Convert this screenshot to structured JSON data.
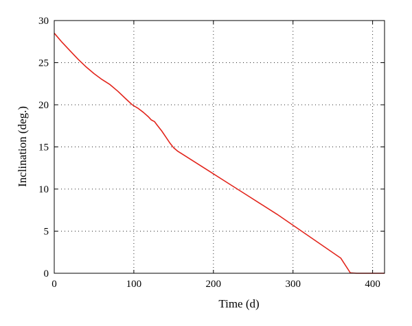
{
  "chart_data": {
    "type": "line",
    "xlabel": "Time (d)",
    "ylabel": "Inclination (deg.)",
    "xlim": [
      0,
      415
    ],
    "ylim": [
      0,
      30
    ],
    "xticks": [
      0,
      100,
      200,
      300,
      400
    ],
    "yticks": [
      0,
      5,
      10,
      15,
      20,
      25,
      30
    ],
    "grid": true,
    "series": [
      {
        "color": "#e2231a",
        "x": [
          0,
          10,
          20,
          30,
          40,
          50,
          60,
          70,
          80,
          90,
          98,
          105,
          112,
          118,
          122,
          126,
          130,
          135,
          140,
          145,
          150,
          155,
          160,
          180,
          200,
          220,
          240,
          260,
          280,
          300,
          320,
          340,
          360,
          372,
          380,
          400,
          415
        ],
        "y": [
          28.5,
          27.4,
          26.4,
          25.4,
          24.5,
          23.7,
          23.0,
          22.4,
          21.6,
          20.7,
          20.0,
          19.6,
          19.1,
          18.6,
          18.2,
          18.0,
          17.5,
          16.9,
          16.2,
          15.5,
          14.9,
          14.5,
          14.2,
          13.0,
          11.8,
          10.6,
          9.4,
          8.2,
          7.0,
          5.7,
          4.4,
          3.1,
          1.8,
          0.05,
          0,
          0,
          0
        ]
      }
    ]
  }
}
